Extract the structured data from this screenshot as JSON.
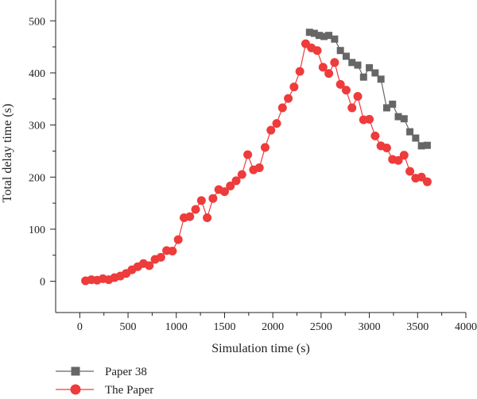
{
  "chart_data": {
    "type": "line",
    "xlabel": "Simulation time (s)",
    "ylabel": "Total delay time (s)",
    "xlim": [
      -250,
      4000
    ],
    "ylim": [
      -60,
      540
    ],
    "xticks": [
      0,
      500,
      1000,
      1500,
      2000,
      2500,
      3000,
      3500,
      4000
    ],
    "yticks": [
      0,
      100,
      200,
      300,
      400,
      500
    ],
    "grid": false,
    "legend_position": "bottom-left",
    "series": [
      {
        "name": "Paper 38",
        "color": "#666666",
        "marker": "square",
        "x": [
          2380,
          2430,
          2480,
          2530,
          2580,
          2640,
          2700,
          2760,
          2820,
          2880,
          2940,
          3000,
          3060,
          3120,
          3180,
          3240,
          3300,
          3360,
          3420,
          3480,
          3540,
          3600
        ],
        "y": [
          478,
          476,
          472,
          470,
          472,
          465,
          443,
          432,
          420,
          415,
          392,
          410,
          400,
          388,
          333,
          340,
          316,
          312,
          287,
          275,
          260,
          261
        ]
      },
      {
        "name": "The Paper",
        "color": "#ee3b3b",
        "marker": "circle",
        "x": [
          60,
          120,
          180,
          240,
          300,
          360,
          420,
          480,
          540,
          600,
          660,
          720,
          780,
          840,
          900,
          960,
          1020,
          1080,
          1140,
          1200,
          1260,
          1320,
          1380,
          1440,
          1500,
          1560,
          1620,
          1680,
          1740,
          1800,
          1860,
          1920,
          1980,
          2040,
          2100,
          2160,
          2220,
          2280,
          2340,
          2400,
          2460,
          2520,
          2580,
          2640,
          2700,
          2760,
          2820,
          2880,
          2940,
          3000,
          3060,
          3120,
          3180,
          3240,
          3300,
          3360,
          3420,
          3480,
          3540,
          3600
        ],
        "y": [
          1,
          3,
          2,
          5,
          3,
          7,
          10,
          15,
          22,
          28,
          34,
          30,
          42,
          46,
          59,
          58,
          80,
          122,
          124,
          138,
          155,
          122,
          159,
          176,
          172,
          183,
          193,
          205,
          243,
          214,
          218,
          257,
          290,
          303,
          333,
          351,
          373,
          403,
          456,
          448,
          443,
          411,
          399,
          420,
          378,
          367,
          333,
          355,
          310,
          311,
          279,
          260,
          256,
          234,
          232,
          242,
          211,
          198,
          200,
          191
        ]
      }
    ]
  }
}
